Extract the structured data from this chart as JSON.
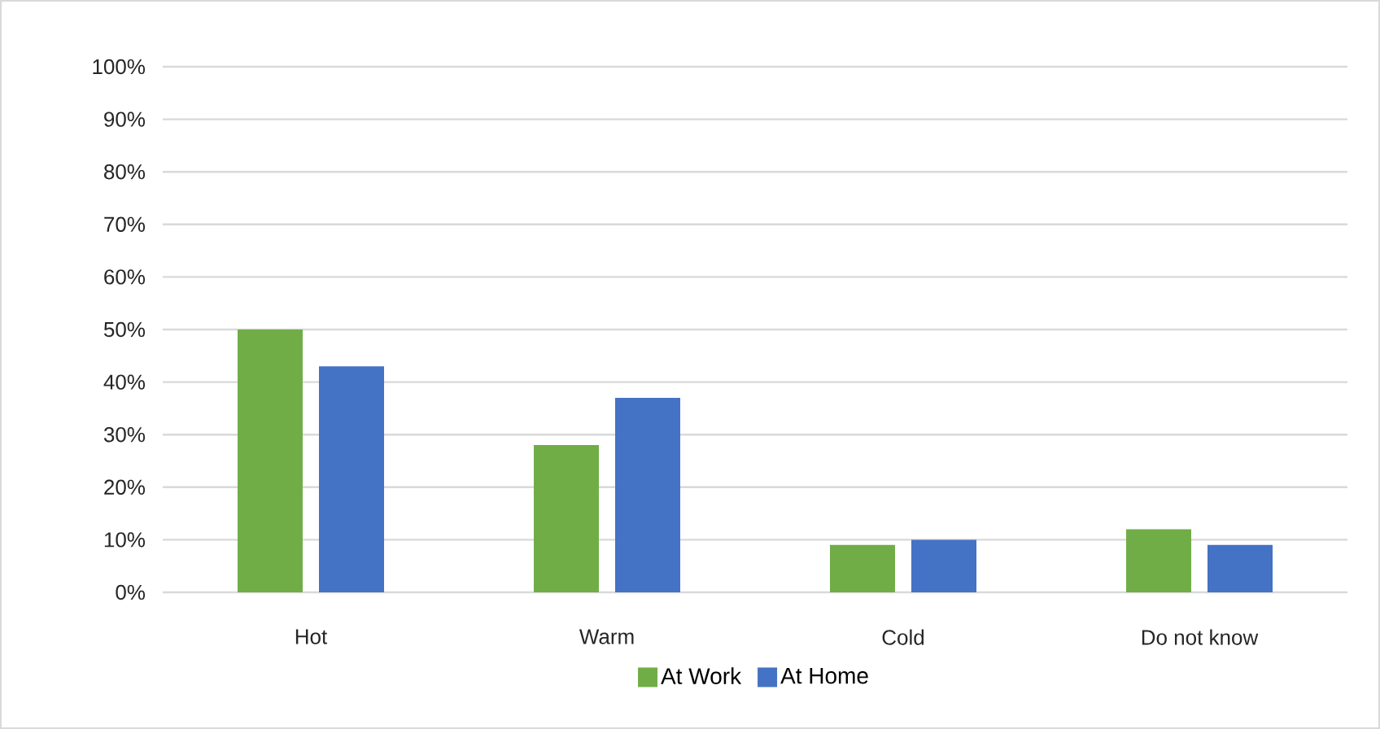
{
  "chart_data": {
    "type": "bar",
    "categories": [
      "Hot",
      "Warm",
      "Cold",
      "Do not know"
    ],
    "series": [
      {
        "name": "At Work",
        "color": "#70ad47",
        "values": [
          50,
          28,
          9,
          12
        ]
      },
      {
        "name": "At Home",
        "color": "#4472c4",
        "values": [
          43,
          37,
          10,
          9
        ]
      }
    ],
    "ylim": [
      0,
      100
    ],
    "yticks": [
      {
        "value": 0,
        "label": "0%"
      },
      {
        "value": 10,
        "label": "10%"
      },
      {
        "value": 20,
        "label": "20%"
      },
      {
        "value": 30,
        "label": "30%"
      },
      {
        "value": 40,
        "label": "40%"
      },
      {
        "value": 50,
        "label": "50%"
      },
      {
        "value": 60,
        "label": "60%"
      },
      {
        "value": 70,
        "label": "70%"
      },
      {
        "value": 80,
        "label": "80%"
      },
      {
        "value": 90,
        "label": "90%"
      },
      {
        "value": 100,
        "label": "100%"
      }
    ],
    "grid": "y",
    "legend": "bottom"
  }
}
